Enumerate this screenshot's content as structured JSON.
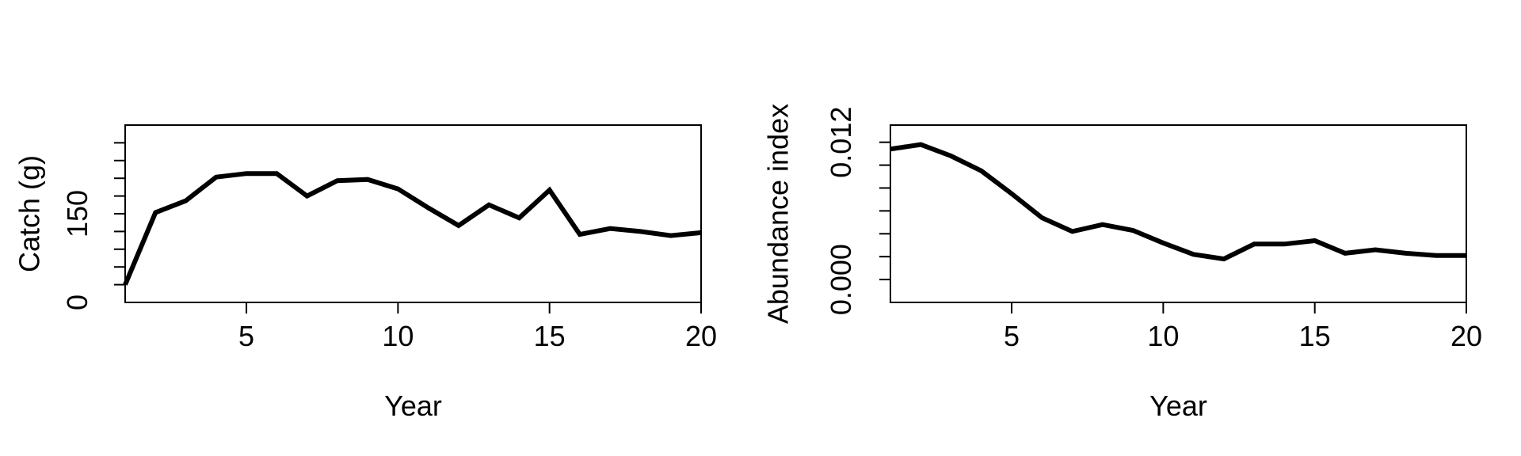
{
  "chart_data": [
    {
      "type": "line",
      "title": "",
      "xlabel": "Year",
      "ylabel": "Catch (g)",
      "xlim": [
        1,
        20
      ],
      "ylim": [
        0,
        300
      ],
      "x_ticks": [
        5,
        10,
        15,
        20
      ],
      "y_minor_ticks": [
        30,
        60,
        90,
        120,
        150,
        180,
        210,
        240,
        270
      ],
      "y_tick_labels": [
        {
          "value": 0,
          "label": "0"
        },
        {
          "value": 150,
          "label": "150"
        }
      ],
      "grid": false,
      "line_color": "#000000",
      "series": [
        {
          "x": [
            1,
            2,
            3,
            4,
            5,
            6,
            7,
            8,
            9,
            10,
            11,
            12,
            13,
            14,
            15,
            16,
            17,
            18,
            19,
            20
          ],
          "values": [
            30,
            152,
            172,
            212,
            218,
            218,
            180,
            206,
            208,
            192,
            160,
            130,
            165,
            143,
            190,
            115,
            125,
            120,
            113,
            118
          ]
        }
      ]
    },
    {
      "type": "line",
      "title": "",
      "xlabel": "Year",
      "ylabel": "Abundance index",
      "xlim": [
        1,
        20
      ],
      "ylim": [
        -0.002,
        0.0135
      ],
      "x_ticks": [
        5,
        10,
        15,
        20
      ],
      "y_minor_ticks": [
        0.0,
        0.002,
        0.004,
        0.006,
        0.008,
        0.01,
        0.012
      ],
      "y_tick_labels": [
        {
          "value": 0.0,
          "label": "0.000"
        },
        {
          "value": 0.012,
          "label": "0.012"
        }
      ],
      "grid": false,
      "line_color": "#000000",
      "series": [
        {
          "x": [
            1,
            2,
            3,
            4,
            5,
            6,
            7,
            8,
            9,
            10,
            11,
            12,
            13,
            14,
            15,
            16,
            17,
            18,
            19,
            20
          ],
          "values": [
            0.0114,
            0.0118,
            0.0108,
            0.0095,
            0.0075,
            0.0054,
            0.0042,
            0.0048,
            0.0043,
            0.0032,
            0.0022,
            0.0018,
            0.0031,
            0.0031,
            0.0034,
            0.0023,
            0.0026,
            0.0023,
            0.0021,
            0.0021
          ]
        }
      ]
    }
  ]
}
